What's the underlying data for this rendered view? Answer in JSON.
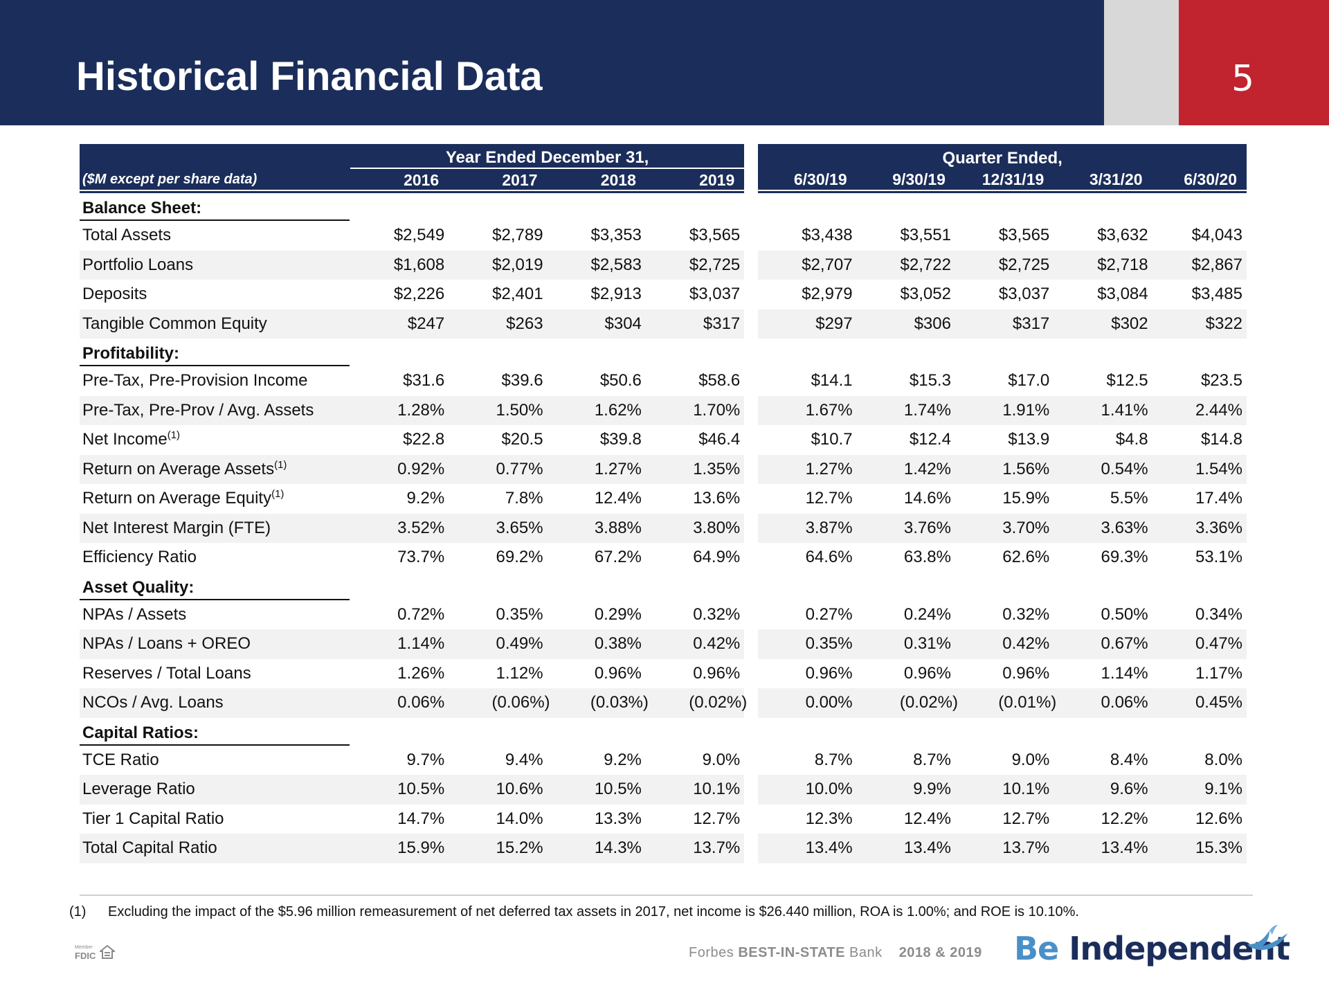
{
  "header": {
    "title": "Historical Financial Data",
    "page_number": "5"
  },
  "table": {
    "units_label": "($M except per share data)",
    "year_group": "Year Ended December 31,",
    "quarter_group": "Quarter Ended,",
    "year_columns": [
      "2016",
      "2017",
      "2018",
      "2019"
    ],
    "quarter_columns": [
      "6/30/19",
      "9/30/19",
      "12/31/19",
      "3/31/20",
      "6/30/20"
    ],
    "sections": [
      {
        "title": "Balance Sheet:",
        "rows": [
          {
            "label": "Total Assets",
            "note": "",
            "values": [
              "$2,549",
              "$2,789",
              "$3,353",
              "$3,565",
              "$3,438",
              "$3,551",
              "$3,565",
              "$3,632",
              "$4,043"
            ]
          },
          {
            "label": "Portfolio Loans",
            "note": "",
            "values": [
              "$1,608",
              "$2,019",
              "$2,583",
              "$2,725",
              "$2,707",
              "$2,722",
              "$2,725",
              "$2,718",
              "$2,867"
            ]
          },
          {
            "label": "Deposits",
            "note": "",
            "values": [
              "$2,226",
              "$2,401",
              "$2,913",
              "$3,037",
              "$2,979",
              "$3,052",
              "$3,037",
              "$3,084",
              "$3,485"
            ]
          },
          {
            "label": "Tangible Common Equity",
            "note": "",
            "values": [
              "$247",
              "$263",
              "$304",
              "$317",
              "$297",
              "$306",
              "$317",
              "$302",
              "$322"
            ]
          }
        ]
      },
      {
        "title": "Profitability:",
        "rows": [
          {
            "label": "Pre-Tax, Pre-Provision Income",
            "note": "",
            "values": [
              "$31.6",
              "$39.6",
              "$50.6",
              "$58.6",
              "$14.1",
              "$15.3",
              "$17.0",
              "$12.5",
              "$23.5"
            ]
          },
          {
            "label": "Pre-Tax, Pre-Prov / Avg. Assets",
            "note": "",
            "values": [
              "1.28%",
              "1.50%",
              "1.62%",
              "1.70%",
              "1.67%",
              "1.74%",
              "1.91%",
              "1.41%",
              "2.44%"
            ]
          },
          {
            "label": "Net Income",
            "note": "(1)",
            "values": [
              "$22.8",
              "$20.5",
              "$39.8",
              "$46.4",
              "$10.7",
              "$12.4",
              "$13.9",
              "$4.8",
              "$14.8"
            ]
          },
          {
            "label": "Return on Average Assets",
            "note": "(1)",
            "values": [
              "0.92%",
              "0.77%",
              "1.27%",
              "1.35%",
              "1.27%",
              "1.42%",
              "1.56%",
              "0.54%",
              "1.54%"
            ]
          },
          {
            "label": "Return on Average Equity",
            "note": "(1)",
            "values": [
              "9.2%",
              "7.8%",
              "12.4%",
              "13.6%",
              "12.7%",
              "14.6%",
              "15.9%",
              "5.5%",
              "17.4%"
            ]
          },
          {
            "label": "Net Interest Margin (FTE)",
            "note": "",
            "values": [
              "3.52%",
              "3.65%",
              "3.88%",
              "3.80%",
              "3.87%",
              "3.76%",
              "3.70%",
              "3.63%",
              "3.36%"
            ]
          },
          {
            "label": "Efficiency Ratio",
            "note": "",
            "values": [
              "73.7%",
              "69.2%",
              "67.2%",
              "64.9%",
              "64.6%",
              "63.8%",
              "62.6%",
              "69.3%",
              "53.1%"
            ]
          }
        ]
      },
      {
        "title": "Asset Quality:",
        "rows": [
          {
            "label": "NPAs / Assets",
            "note": "",
            "values": [
              "0.72%",
              "0.35%",
              "0.29%",
              "0.32%",
              "0.27%",
              "0.24%",
              "0.32%",
              "0.50%",
              "0.34%"
            ]
          },
          {
            "label": "NPAs / Loans + OREO",
            "note": "",
            "values": [
              "1.14%",
              "0.49%",
              "0.38%",
              "0.42%",
              "0.35%",
              "0.31%",
              "0.42%",
              "0.67%",
              "0.47%"
            ]
          },
          {
            "label": "Reserves / Total Loans",
            "note": "",
            "values": [
              "1.26%",
              "1.12%",
              "0.96%",
              "0.96%",
              "0.96%",
              "0.96%",
              "0.96%",
              "1.14%",
              "1.17%"
            ]
          },
          {
            "label": "NCOs / Avg. Loans",
            "note": "",
            "values": [
              "0.06%",
              "(0.06%)",
              "(0.03%)",
              "(0.02%)",
              "0.00%",
              "(0.02%)",
              "(0.01%)",
              "0.06%",
              "0.45%"
            ]
          }
        ]
      },
      {
        "title": "Capital Ratios:",
        "rows": [
          {
            "label": "TCE Ratio",
            "note": "",
            "values": [
              "9.7%",
              "9.4%",
              "9.2%",
              "9.0%",
              "8.7%",
              "8.7%",
              "9.0%",
              "8.4%",
              "8.0%"
            ]
          },
          {
            "label": "Leverage Ratio",
            "note": "",
            "values": [
              "10.5%",
              "10.6%",
              "10.5%",
              "10.1%",
              "10.0%",
              "9.9%",
              "10.1%",
              "9.6%",
              "9.1%"
            ]
          },
          {
            "label": "Tier 1 Capital Ratio",
            "note": "",
            "values": [
              "14.7%",
              "14.0%",
              "13.3%",
              "12.7%",
              "12.3%",
              "12.4%",
              "12.7%",
              "12.2%",
              "12.6%"
            ]
          },
          {
            "label": "Total Capital Ratio",
            "note": "",
            "values": [
              "15.9%",
              "15.2%",
              "14.3%",
              "13.7%",
              "13.4%",
              "13.4%",
              "13.7%",
              "13.4%",
              "15.3%"
            ]
          }
        ]
      }
    ]
  },
  "footnote": {
    "mark": "(1)",
    "text": "Excluding the impact of the $5.96 million remeasurement of net deferred tax assets in 2017, net income is $26.440 million, ROA is 1.00%; and ROE is 10.10%."
  },
  "footer": {
    "fdic_member": "Member",
    "fdic": "FDIC",
    "forbes_prefix": "Forbes",
    "forbes_award": "BEST-IN-STATE",
    "forbes_suffix": "Bank",
    "award_years": "2018 & 2019",
    "brand_be": "Be",
    "brand_independent": "Independent"
  },
  "colors": {
    "navy": "#1b2d5a",
    "red": "#c1232f",
    "grey": "#d8d8d8",
    "row_shade": "#f2f2f2",
    "brand_blue": "#4a90c8"
  }
}
